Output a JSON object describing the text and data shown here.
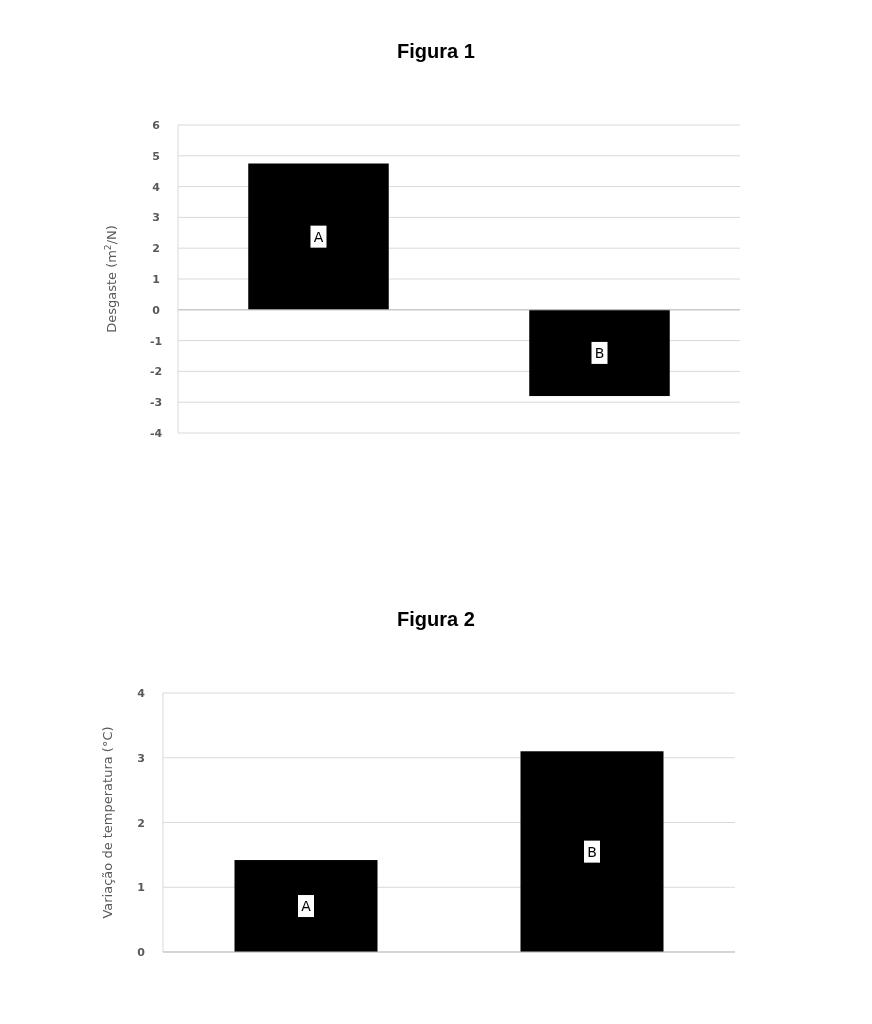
{
  "chart_data": [
    {
      "type": "bar",
      "title": "Figura 1",
      "ylabel": "Desgaste   (m$^{2}$/N)",
      "categories": [
        "A",
        "B"
      ],
      "values": [
        4.75,
        -2.8
      ],
      "color": "#000000",
      "ylim": [
        -4,
        6
      ],
      "yticks": [
        -4,
        -3,
        -2,
        -1,
        0,
        1,
        2,
        3,
        4,
        5,
        6
      ],
      "grid": "y"
    },
    {
      "type": "bar",
      "title": "Figura 2",
      "ylabel": "Variação de temperatura (°C)",
      "categories": [
        "A",
        "B"
      ],
      "values": [
        1.42,
        3.1
      ],
      "color": "#000000",
      "ylim": [
        0,
        4
      ],
      "yticks": [
        0,
        1,
        2,
        3,
        4
      ],
      "grid": "y"
    }
  ]
}
